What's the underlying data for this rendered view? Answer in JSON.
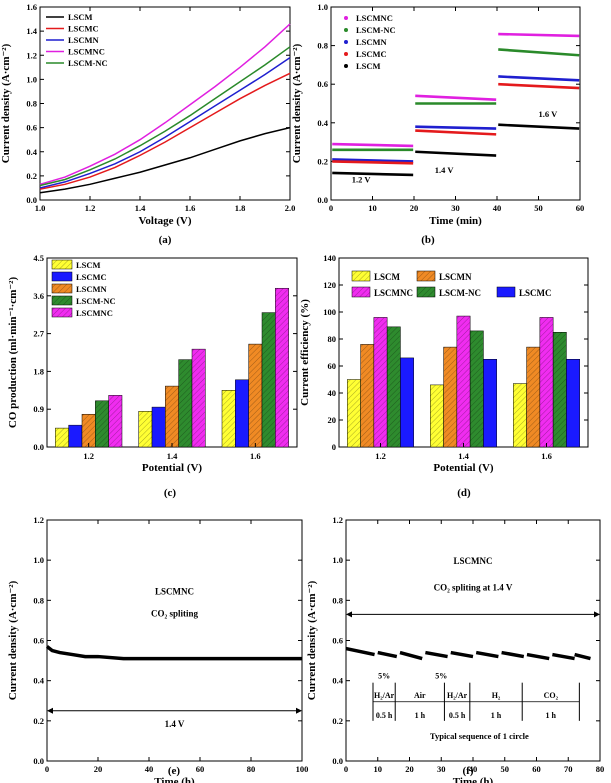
{
  "chart_data": [
    {
      "panel": "(a)",
      "type": "line",
      "xlabel": "Voltage (V)",
      "ylabel": "Current density (A·cm⁻²)",
      "xlim": [
        1.0,
        2.0
      ],
      "ylim": [
        0,
        1.6
      ],
      "xticks": [
        "1.0",
        "1.2",
        "1.4",
        "1.6",
        "1.8",
        "2.0"
      ],
      "yticks": [
        "0.0",
        "0.2",
        "0.4",
        "0.6",
        "0.8",
        "1.0",
        "1.2",
        "1.4",
        "1.6"
      ],
      "legend_position": "top-left",
      "series": [
        {
          "name": "LSCM",
          "color": "#000000",
          "x": [
            1.0,
            1.1,
            1.2,
            1.3,
            1.4,
            1.5,
            1.6,
            1.7,
            1.8,
            1.9,
            2.0
          ],
          "y": [
            0.06,
            0.09,
            0.13,
            0.18,
            0.23,
            0.29,
            0.35,
            0.42,
            0.49,
            0.55,
            0.6
          ]
        },
        {
          "name": "LSCMC",
          "color": "#e41a1c",
          "x": [
            1.0,
            1.1,
            1.2,
            1.3,
            1.4,
            1.5,
            1.6,
            1.7,
            1.8,
            1.9,
            2.0
          ],
          "y": [
            0.09,
            0.13,
            0.19,
            0.27,
            0.37,
            0.48,
            0.6,
            0.72,
            0.84,
            0.95,
            1.05
          ]
        },
        {
          "name": "LSCMN",
          "color": "#1f1fcf",
          "x": [
            1.0,
            1.1,
            1.2,
            1.3,
            1.4,
            1.5,
            1.6,
            1.7,
            1.8,
            1.9,
            2.0
          ],
          "y": [
            0.1,
            0.15,
            0.22,
            0.3,
            0.4,
            0.52,
            0.65,
            0.78,
            0.91,
            1.04,
            1.18
          ]
        },
        {
          "name": "LSCMNC",
          "color": "#e020e0",
          "x": [
            1.0,
            1.1,
            1.2,
            1.3,
            1.4,
            1.5,
            1.6,
            1.7,
            1.8,
            1.9,
            2.0
          ],
          "y": [
            0.13,
            0.19,
            0.28,
            0.38,
            0.5,
            0.64,
            0.79,
            0.94,
            1.1,
            1.27,
            1.46
          ]
        },
        {
          "name": "LSCM-NC",
          "color": "#2a8a2a",
          "x": [
            1.0,
            1.1,
            1.2,
            1.3,
            1.4,
            1.5,
            1.6,
            1.7,
            1.8,
            1.9,
            2.0
          ],
          "y": [
            0.12,
            0.17,
            0.25,
            0.34,
            0.45,
            0.57,
            0.7,
            0.84,
            0.98,
            1.12,
            1.27
          ]
        }
      ]
    },
    {
      "panel": "(b)",
      "type": "line",
      "xlabel": "Time (min)",
      "ylabel": "Current density (A·cm⁻²)",
      "xlim": [
        0,
        60
      ],
      "ylim": [
        0,
        1.0
      ],
      "xticks": [
        "0",
        "10",
        "20",
        "30",
        "40",
        "50",
        "60"
      ],
      "yticks": [
        "0.0",
        "0.2",
        "0.4",
        "0.6",
        "0.8",
        "1.0"
      ],
      "legend_position": "top-left",
      "annotations": [
        "1.2 V",
        "1.4 V",
        "1.6 V"
      ],
      "segments_x": [
        [
          0,
          20
        ],
        [
          20,
          40
        ],
        [
          40,
          60
        ]
      ],
      "series": [
        {
          "name": "LSCMNC",
          "color": "#e020e0",
          "start": [
            0.29,
            0.54,
            0.86
          ],
          "end": [
            0.28,
            0.52,
            0.85
          ]
        },
        {
          "name": "LSCM-NC",
          "color": "#2a8a2a",
          "start": [
            0.26,
            0.5,
            0.78
          ],
          "end": [
            0.26,
            0.5,
            0.75
          ]
        },
        {
          "name": "LSCMN",
          "color": "#1f1fcf",
          "start": [
            0.21,
            0.38,
            0.64
          ],
          "end": [
            0.2,
            0.37,
            0.62
          ]
        },
        {
          "name": "LSCMC",
          "color": "#e41a1c",
          "start": [
            0.2,
            0.36,
            0.6
          ],
          "end": [
            0.19,
            0.34,
            0.58
          ]
        },
        {
          "name": "LSCM",
          "color": "#000000",
          "start": [
            0.14,
            0.25,
            0.39
          ],
          "end": [
            0.13,
            0.23,
            0.37
          ]
        }
      ]
    },
    {
      "panel": "(c)",
      "type": "bar",
      "xlabel": "Potential (V)",
      "ylabel": "CO production (ml·min⁻¹·cm⁻²)",
      "categories": [
        "1.2",
        "1.4",
        "1.6"
      ],
      "ylim": [
        0,
        4.5
      ],
      "yticks": [
        "0.0",
        "0.9",
        "1.8",
        "2.7",
        "3.6",
        "4.5"
      ],
      "legend_position": "top-left",
      "series": [
        {
          "name": "LSCM",
          "color": "#ffff33",
          "hatch": true,
          "values": [
            0.45,
            0.85,
            1.35
          ]
        },
        {
          "name": "LSCMC",
          "color": "#1a1aff",
          "hatch": false,
          "values": [
            0.52,
            0.95,
            1.6
          ]
        },
        {
          "name": "LSCMN",
          "color": "#f08a24",
          "hatch": true,
          "values": [
            0.78,
            1.45,
            2.45
          ]
        },
        {
          "name": "LSCM-NC",
          "color": "#2e8b2e",
          "hatch": true,
          "values": [
            1.1,
            2.08,
            3.2
          ]
        },
        {
          "name": "LSCMNC",
          "color": "#f02cf0",
          "hatch": true,
          "values": [
            1.23,
            2.33,
            3.78
          ]
        }
      ]
    },
    {
      "panel": "(d)",
      "type": "bar",
      "xlabel": "Potential (V)",
      "ylabel": "Current efficiency (%)",
      "categories": [
        "1.2",
        "1.4",
        "1.6"
      ],
      "ylim": [
        0,
        140
      ],
      "yticks": [
        "0",
        "20",
        "40",
        "60",
        "80",
        "100",
        "120",
        "140"
      ],
      "legend_position": "top",
      "series": [
        {
          "name": "LSCM",
          "color": "#ffff33",
          "hatch": true,
          "values": [
            50,
            46,
            47
          ]
        },
        {
          "name": "LSCMN",
          "color": "#f08a24",
          "hatch": true,
          "values": [
            76,
            74,
            74
          ]
        },
        {
          "name": "LSCMNC",
          "color": "#f02cf0",
          "hatch": true,
          "values": [
            96,
            97,
            96
          ]
        },
        {
          "name": "LSCM-NC",
          "color": "#2e8b2e",
          "hatch": true,
          "values": [
            89,
            86,
            85
          ]
        },
        {
          "name": "LSCMC",
          "color": "#1a1aff",
          "hatch": false,
          "values": [
            66,
            65,
            65
          ]
        }
      ]
    },
    {
      "panel": "(e)",
      "type": "line",
      "xlabel": "Time (h)",
      "ylabel": "Current density (A·cm⁻²)",
      "xlim": [
        0,
        100
      ],
      "ylim": [
        0,
        1.2
      ],
      "xticks": [
        "0",
        "20",
        "40",
        "60",
        "80",
        "100"
      ],
      "yticks": [
        "0.0",
        "0.2",
        "0.4",
        "0.6",
        "0.8",
        "1.0",
        "1.2"
      ],
      "annotations": [
        "LSCMNC",
        "CO₂ spliting",
        "1.4 V"
      ],
      "series": [
        {
          "name": "LSCMNC",
          "color": "#000000",
          "x": [
            0,
            2,
            5,
            10,
            15,
            20,
            30,
            40,
            50,
            60,
            70,
            80,
            90,
            100
          ],
          "y": [
            0.57,
            0.55,
            0.54,
            0.53,
            0.52,
            0.52,
            0.51,
            0.51,
            0.51,
            0.51,
            0.51,
            0.51,
            0.51,
            0.51
          ]
        }
      ]
    },
    {
      "panel": "(f)",
      "type": "line",
      "xlabel": "Time (h)",
      "ylabel": "Current density (A·cm⁻²)",
      "xlim": [
        0,
        80
      ],
      "ylim": [
        0,
        1.2
      ],
      "xticks": [
        "0",
        "10",
        "20",
        "30",
        "40",
        "50",
        "60",
        "70",
        "80"
      ],
      "yticks": [
        "0.0",
        "0.2",
        "0.4",
        "0.6",
        "0.8",
        "1.0",
        "1.2"
      ],
      "annotations": [
        "LSCMNC",
        "CO₂ spliting at 1.4 V",
        "5%",
        "5%",
        "Typical sequence  of 1 circle"
      ],
      "sequence": [
        {
          "gas": "H₂/Ar",
          "duration": "0.5 h"
        },
        {
          "gas": "Air",
          "duration": "1 h"
        },
        {
          "gas": "H₂/Ar",
          "duration": "0.5 h"
        },
        {
          "gas": "H₂",
          "duration": "1 h"
        },
        {
          "gas": "CO₂",
          "duration": "1 h"
        }
      ],
      "segments": [
        {
          "x": [
            0,
            9
          ],
          "y": [
            0.56,
            0.53
          ]
        },
        {
          "x": [
            10,
            16
          ],
          "y": [
            0.54,
            0.52
          ]
        },
        {
          "x": [
            17,
            24
          ],
          "y": [
            0.54,
            0.51
          ]
        },
        {
          "x": [
            25,
            32
          ],
          "y": [
            0.54,
            0.52
          ]
        },
        {
          "x": [
            33,
            40
          ],
          "y": [
            0.54,
            0.52
          ]
        },
        {
          "x": [
            41,
            48
          ],
          "y": [
            0.54,
            0.52
          ]
        },
        {
          "x": [
            49,
            56
          ],
          "y": [
            0.54,
            0.52
          ]
        },
        {
          "x": [
            57,
            64
          ],
          "y": [
            0.53,
            0.51
          ]
        },
        {
          "x": [
            65,
            72
          ],
          "y": [
            0.53,
            0.51
          ]
        },
        {
          "x": [
            72,
            77
          ],
          "y": [
            0.53,
            0.51
          ]
        }
      ]
    }
  ]
}
